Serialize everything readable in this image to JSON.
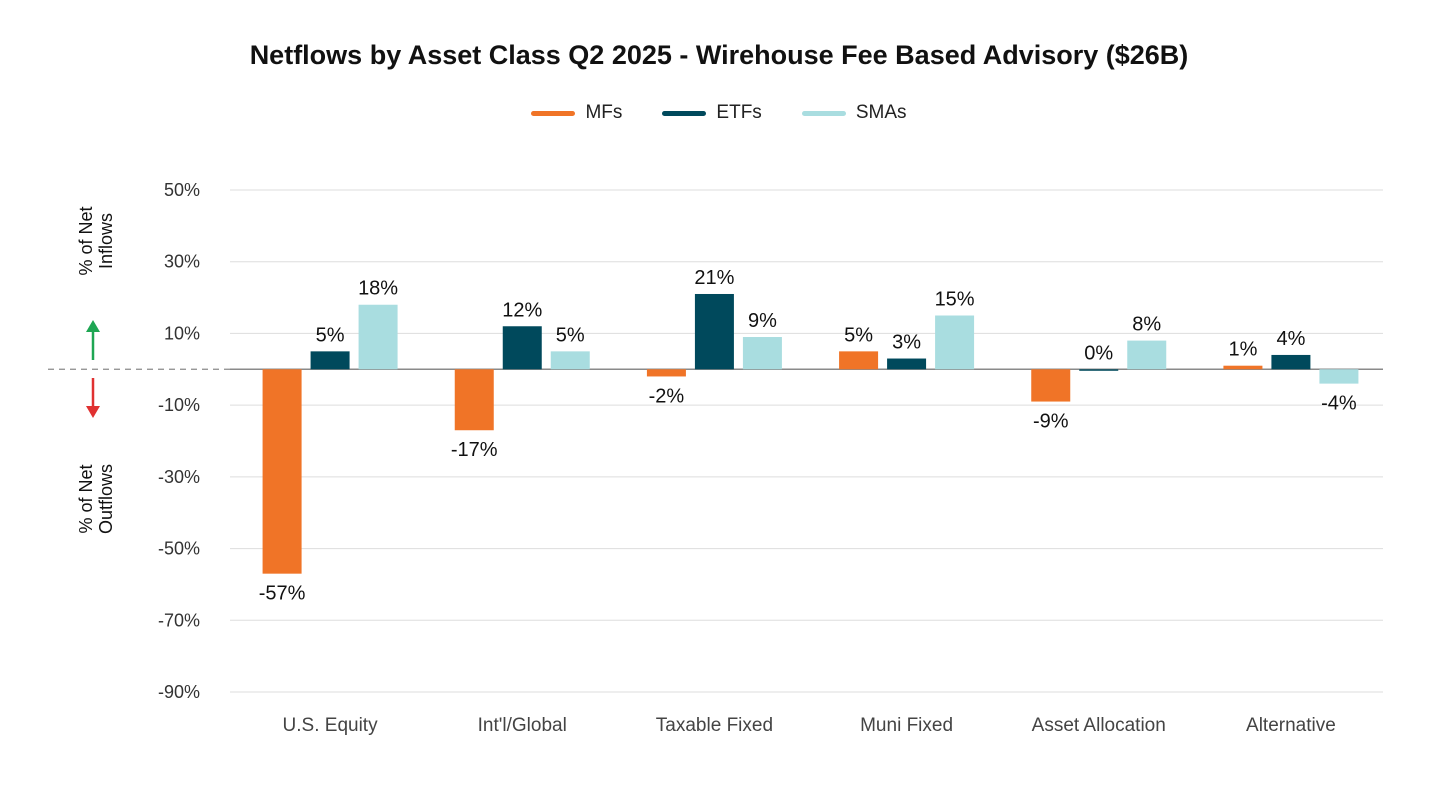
{
  "chart_data": {
    "type": "bar",
    "title": "Netflows by Asset Class Q2 2025 - Wirehouse Fee Based Advisory ($26B)",
    "categories": [
      "U.S. Equity",
      "Int'l/Global",
      "Taxable Fixed",
      "Muni Fixed",
      "Asset Allocation",
      "Alternative"
    ],
    "series": [
      {
        "name": "MFs",
        "values": [
          -57,
          -17,
          -2,
          5,
          -9,
          1
        ],
        "color": "#F07427"
      },
      {
        "name": "ETFs",
        "values": [
          5,
          12,
          21,
          3,
          0,
          4
        ],
        "color": "#00495C"
      },
      {
        "name": "SMAs",
        "values": [
          18,
          5,
          9,
          15,
          8,
          -4
        ],
        "color": "#A9DDE0"
      }
    ],
    "data_labels": [
      [
        "-57%",
        "5%",
        "18%"
      ],
      [
        "-17%",
        "12%",
        "5%"
      ],
      [
        "-2%",
        "21%",
        "9%"
      ],
      [
        "5%",
        "3%",
        "15%"
      ],
      [
        "-9%",
        "0%",
        "8%"
      ],
      [
        "1%",
        "4%",
        "-4%"
      ]
    ],
    "yticks": [
      50,
      30,
      10,
      -10,
      -30,
      -50,
      -70,
      -90
    ],
    "ytick_labels": [
      "50%",
      "30%",
      "10%",
      "-10%",
      "-30%",
      "-50%",
      "-70%",
      "-90%"
    ],
    "ylim": [
      -90,
      50
    ],
    "legend_position": "top-center",
    "grid": true,
    "inflow_label": [
      "% of Net",
      "Inflows"
    ],
    "outflow_label": [
      "% of Net",
      "Outflows"
    ],
    "inflow_arrow_color": "#1EA653",
    "outflow_arrow_color": "#E03131"
  }
}
